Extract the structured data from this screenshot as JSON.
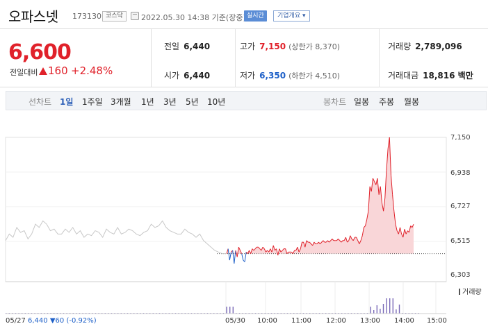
{
  "header": {
    "stock_name": "오파스넷",
    "stock_code": "173130",
    "market": "코스닥",
    "timestamp": "2022.05.30 14:38 기준(장중)",
    "realtime_label": "실시간",
    "overview_label": "기업개요 ▾",
    "clock_icon": "clock-icon"
  },
  "price": {
    "current": "6,600",
    "change_label": "전일대비",
    "change_abs": "160",
    "change_pct": "+2.48%",
    "direction": "up",
    "up_color": "#e0212a",
    "down_color": "#1e60c8"
  },
  "stats": {
    "prev_close_label": "전일",
    "prev_close": "6,440",
    "open_label": "시가",
    "open": "6,440",
    "high_label": "고가",
    "high": "7,150",
    "upper_limit": "(상한가 8,370)",
    "low_label": "저가",
    "low": "6,350",
    "lower_limit": "(하한가 4,510)",
    "volume_label": "거래량",
    "volume": "2,789,096",
    "amount_label": "거래대금",
    "amount": "18,816 백만"
  },
  "period_bar": {
    "line_title": "선차트",
    "line_periods": [
      "1일",
      "1주일",
      "3개월",
      "1년",
      "3년",
      "5년",
      "10년"
    ],
    "active_period": "1일",
    "candle_title": "봉차트",
    "candle_periods": [
      "일봉",
      "주봉",
      "월봉"
    ]
  },
  "chart_data": {
    "type": "line",
    "y_ticks": [
      "7,150",
      "6,938",
      "6,727",
      "6,515",
      "6,303"
    ],
    "ylim": [
      6303,
      7150
    ],
    "prev_close_line": 6440,
    "x_ticks": [
      "05/27",
      "05/30",
      "10:00",
      "11:00",
      "12:00",
      "13:00",
      "14:00",
      "15:00"
    ],
    "prev_day_info": {
      "date": "05/27",
      "close": "6,440",
      "change": "▼60",
      "pct": "(-0.92%)"
    },
    "volume_legend": "거래량",
    "series": [
      {
        "values": [
          6520,
          6560,
          6540,
          6600,
          6570,
          6580,
          6530,
          6560,
          6620,
          6600,
          6640,
          6620,
          6580,
          6590,
          6560,
          6560,
          6590,
          6570,
          6600,
          6560,
          6580,
          6540,
          6560,
          6550,
          6580,
          6570,
          6540,
          6590,
          6570,
          6560,
          6600,
          6560,
          6570,
          6590,
          6580,
          6560,
          6550,
          6570,
          6580,
          6620,
          6600,
          6610,
          6640,
          6600,
          6580,
          6570,
          6560,
          6560,
          6590,
          6570,
          6560,
          6540,
          6560,
          6520,
          6500,
          6480,
          6460,
          6450,
          6440,
          6440
        ]
      },
      {
        "values": [
          6440,
          6470,
          6400,
          6450,
          6460,
          6380,
          6460,
          6420,
          6480,
          6460,
          6440,
          6400,
          6390,
          6450,
          6440,
          6460,
          6440,
          6470,
          6460,
          6470,
          6480,
          6480,
          6470,
          6460,
          6480,
          6470,
          6450,
          6460,
          6450,
          6470,
          6450,
          6490,
          6460,
          6470,
          6430,
          6470,
          6450,
          6460,
          6470,
          6470,
          6440,
          6450,
          6450,
          6450,
          6440,
          6460,
          6460,
          6480
        ]
      },
      {
        "values": [
          6450,
          6470,
          6510,
          6510,
          6480,
          6520,
          6510,
          6510,
          6500,
          6490,
          6510,
          6500,
          6500,
          6510,
          6500,
          6510,
          6520,
          6510,
          6510,
          6520,
          6510,
          6520,
          6530,
          6520,
          6520,
          6520,
          6530,
          6520,
          6510,
          6520,
          6520,
          6540,
          6510,
          6520,
          6550,
          6530,
          6520,
          6540,
          6540,
          6520,
          6500,
          6520,
          6550,
          6600,
          6610,
          6650,
          6700,
          6850,
          6820,
          6900,
          6880,
          6860,
          6900,
          6800,
          6850,
          6750,
          6700,
          6780,
          6950,
          7080,
          7150,
          6920,
          6800,
          6700,
          6620,
          6580,
          6560,
          6600,
          6560,
          6540,
          6590,
          6560,
          6580,
          6570,
          6610,
          6600,
          6620
        ]
      }
    ],
    "colors": {
      "prev_day": "#c8c8c8",
      "above": "#e0212a",
      "below": "#1e60c8",
      "area": "#f9d6d8",
      "volume": "#7a6ab8"
    }
  }
}
